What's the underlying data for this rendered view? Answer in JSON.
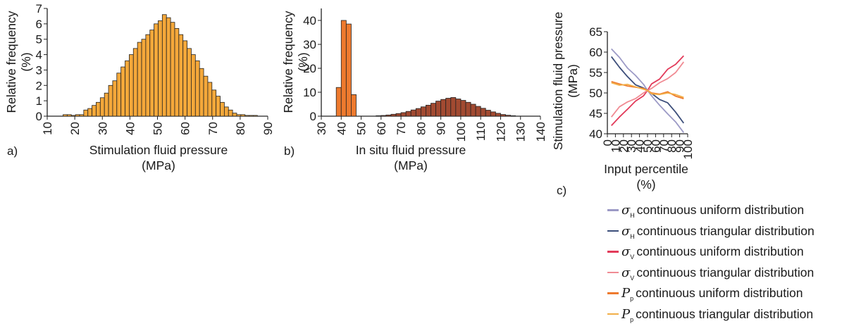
{
  "panels": {
    "a": {
      "tag": "a)"
    },
    "b": {
      "tag": "b)"
    },
    "c": {
      "tag": "c)"
    }
  },
  "chart_data": [
    {
      "type": "bar",
      "panel": "a",
      "xlabel": "Stimulation fluid pressure\n(MPa)",
      "ylabel": "Relative frequency\n(%)",
      "xlim": [
        10,
        90
      ],
      "ylim": [
        0,
        7
      ],
      "xticks": [
        10,
        20,
        30,
        40,
        50,
        60,
        70,
        80,
        90
      ],
      "yticks": [
        0,
        1,
        2,
        3,
        4,
        5,
        6,
        7
      ],
      "bin_width": 1.5,
      "color": "#F5A83A",
      "x": [
        16.5,
        18,
        19.5,
        21,
        22.5,
        24,
        25.5,
        27,
        28.5,
        30,
        31.5,
        33,
        34.5,
        36,
        37.5,
        39,
        40.5,
        42,
        43.5,
        45,
        46.5,
        48,
        49.5,
        51,
        52.5,
        54,
        55.5,
        57,
        58.5,
        60,
        61.5,
        63,
        64.5,
        66,
        67.5,
        69,
        70.5,
        72,
        73.5,
        75,
        76.5,
        78,
        79.5,
        81,
        82.5,
        84,
        85.5
      ],
      "values": [
        0.1,
        0.1,
        0.05,
        0.1,
        0.1,
        0.4,
        0.5,
        0.7,
        0.9,
        1.2,
        1.5,
        2.0,
        2.3,
        2.8,
        3.2,
        3.6,
        4.0,
        4.4,
        4.8,
        5.0,
        5.3,
        5.6,
        6.0,
        6.2,
        6.6,
        6.4,
        6.1,
        5.7,
        5.3,
        4.9,
        4.4,
        4.0,
        3.6,
        3.1,
        2.6,
        2.2,
        1.7,
        1.3,
        0.9,
        0.6,
        0.4,
        0.2,
        0.1,
        0.1,
        0.05,
        0.05,
        0.05
      ]
    },
    {
      "type": "bar",
      "panel": "b",
      "xlabel": "In situ fluid pressure\n(MPa)",
      "ylabel": "Relative frequency\n(%)",
      "xlim": [
        30,
        140
      ],
      "ylim": [
        0,
        45
      ],
      "xticks": [
        30,
        40,
        50,
        60,
        70,
        80,
        90,
        100,
        110,
        120,
        130,
        140
      ],
      "yticks": [
        0,
        10,
        20,
        30,
        40
      ],
      "series": [
        {
          "bin_width": 2.5,
          "color": "#EE7A2E",
          "x": [
            38.75,
            41.25,
            43.75,
            46.25
          ],
          "values": [
            12,
            40,
            38.5,
            9
          ]
        },
        {
          "bin_width": 2.5,
          "color": "#A24A31",
          "x": [
            58.75,
            61.25,
            63.75,
            66.25,
            68.75,
            71.25,
            73.75,
            76.25,
            78.75,
            81.25,
            83.75,
            86.25,
            88.75,
            91.25,
            93.75,
            96.25,
            98.75,
            101.25,
            103.75,
            106.25,
            108.75,
            111.25,
            113.75,
            116.25,
            118.75,
            121.25,
            123.75,
            126.25
          ],
          "values": [
            0.2,
            0.3,
            0.5,
            0.8,
            1.1,
            1.5,
            2.0,
            2.6,
            3.2,
            3.9,
            4.6,
            5.4,
            6.3,
            7.0,
            7.5,
            7.8,
            7.2,
            6.6,
            5.8,
            5.0,
            4.1,
            3.3,
            2.5,
            1.8,
            1.2,
            0.7,
            0.4,
            0.2
          ]
        }
      ]
    },
    {
      "type": "line",
      "panel": "c",
      "xlabel": "Input percentile\n(%)",
      "ylabel": "Stimulation fluid pressure\n(MPa)",
      "xlim": [
        0,
        100
      ],
      "ylim": [
        40,
        65
      ],
      "xticks": [
        0,
        10,
        20,
        30,
        40,
        50,
        60,
        70,
        80,
        90,
        100
      ],
      "yticks": [
        40,
        45,
        50,
        55,
        60,
        65
      ],
      "x": [
        5,
        15,
        25,
        35,
        45,
        50,
        55,
        65,
        75,
        85,
        95
      ],
      "series": [
        {
          "sym": "σ",
          "sub": "H",
          "name": "continuous uniform distribution",
          "color": "#9C9AC6",
          "values": [
            60.8,
            58.7,
            56.1,
            54.3,
            52.1,
            50.6,
            49.3,
            47.0,
            44.9,
            42.9,
            40.3
          ]
        },
        {
          "sym": "σ",
          "sub": "H",
          "name": "continuous triangular distribution",
          "color": "#3C4E7A",
          "values": [
            58.9,
            56.3,
            54.0,
            52.0,
            51.2,
            50.6,
            49.9,
            48.4,
            47.6,
            45.3,
            42.6
          ]
        },
        {
          "sym": "σ",
          "sub": "V",
          "name": "continuous uniform distribution",
          "color": "#E23B5A",
          "values": [
            42.0,
            44.1,
            46.0,
            48.0,
            49.3,
            50.6,
            52.2,
            53.4,
            55.8,
            57.0,
            59.1
          ]
        },
        {
          "sym": "σ",
          "sub": "V",
          "name": "continuous triangular distribution",
          "color": "#F08B93",
          "values": [
            44.1,
            46.6,
            47.8,
            48.6,
            50.0,
            50.6,
            51.1,
            52.5,
            53.5,
            55.0,
            57.6
          ]
        },
        {
          "sym": "P",
          "sub": "p",
          "name": "continuous uniform distribution",
          "color": "#EE7A2E",
          "values": [
            52.8,
            52.2,
            51.7,
            51.4,
            51.1,
            50.6,
            50.0,
            49.7,
            50.3,
            49.2,
            48.6
          ]
        },
        {
          "sym": "P",
          "sub": "p",
          "name": "continuous triangular distribution",
          "color": "#F2AE47",
          "values": [
            52.5,
            51.9,
            52.1,
            51.5,
            50.9,
            50.6,
            49.8,
            49.6,
            50.0,
            49.6,
            48.9
          ]
        }
      ]
    }
  ]
}
